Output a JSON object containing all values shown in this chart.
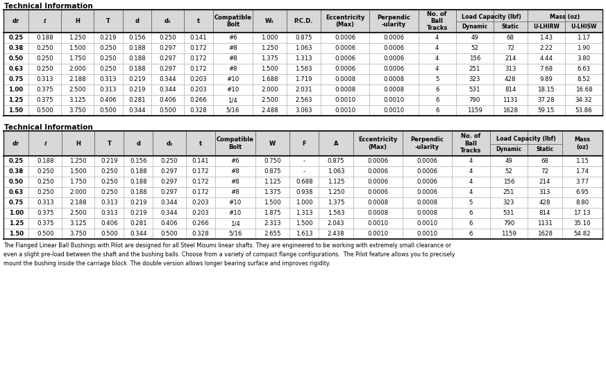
{
  "title1": "Technical Information",
  "title2": "Technical Information",
  "table1_data": [
    [
      "0.25",
      "0.188",
      "1.250",
      "0.219",
      "0.156",
      "0.250",
      "0.141",
      "#6",
      "1.000",
      "0.875",
      "0.0006",
      "0.0006",
      "4",
      "49",
      "68",
      "1.43",
      "1.17"
    ],
    [
      "0.38",
      "0.250",
      "1.500",
      "0.250",
      "0.188",
      "0.297",
      "0.172",
      "#8",
      "1.250",
      "1.063",
      "0.0006",
      "0.0006",
      "4",
      "52",
      "72",
      "2.22",
      "1.90"
    ],
    [
      "0.50",
      "0.250",
      "1.750",
      "0.250",
      "0.188",
      "0.297",
      "0.172",
      "#8",
      "1.375",
      "1.313",
      "0.0006",
      "0.0006",
      "4",
      "156",
      "214",
      "4.44",
      "3.80"
    ],
    [
      "0.63",
      "0.250",
      "2.000",
      "0.250",
      "0.188",
      "0.297",
      "0.172",
      "#8",
      "1.500",
      "1.563",
      "0.0006",
      "0.0006",
      "4",
      "251",
      "313",
      "7.68",
      "6.63"
    ],
    [
      "0.75",
      "0.313",
      "2.188",
      "0.313",
      "0.219",
      "0.344",
      "0.203",
      "#10",
      "1.688",
      "1.719",
      "0.0008",
      "0.0008",
      "5",
      "323",
      "428",
      "9.89",
      "8.52"
    ],
    [
      "1.00",
      "0.375",
      "2.500",
      "0.313",
      "0.219",
      "0.344",
      "0.203",
      "#10",
      "2.000",
      "2.031",
      "0.0008",
      "0.0008",
      "6",
      "531",
      "814",
      "18.15",
      "16.68"
    ],
    [
      "1.25",
      "0.375",
      "3.125",
      "0.406",
      "0.281",
      "0.406",
      "0.266",
      "1/4",
      "2.500",
      "2.563",
      "0.0010",
      "0.0010",
      "6",
      "790",
      "1131",
      "37.28",
      "34.32"
    ],
    [
      "1.50",
      "0.500",
      "3.750",
      "0.500",
      "0.344",
      "0.500",
      "0.328",
      "5/16",
      "2.488",
      "3.063",
      "0.0010",
      "0.0010",
      "6",
      "1159",
      "1628",
      "59.15",
      "53.86"
    ]
  ],
  "table2_data": [
    [
      "0.25",
      "0.188",
      "1.250",
      "0.219",
      "0.156",
      "0.250",
      "0.141",
      "#6",
      "0.750",
      "-",
      "0.875",
      "0.0006",
      "0.0006",
      "4",
      "49",
      "68",
      "1.15"
    ],
    [
      "0.38",
      "0.250",
      "1.500",
      "0.250",
      "0.188",
      "0.297",
      "0.172",
      "#8",
      "0.875",
      "-",
      "1.063",
      "0.0006",
      "0.0006",
      "4",
      "52",
      "72",
      "1.74"
    ],
    [
      "0.50",
      "0.250",
      "1.750",
      "0.250",
      "0.188",
      "0.297",
      "0.172",
      "#8",
      "1.125",
      "0.688",
      "1.125",
      "0.0006",
      "0.0006",
      "4",
      "156",
      "214",
      "3.77"
    ],
    [
      "0.63",
      "0.250",
      "2.000",
      "0.250",
      "0.188",
      "0.297",
      "0.172",
      "#8",
      "1.375",
      "0.938",
      "1.250",
      "0.0006",
      "0.0006",
      "4",
      "251",
      "313",
      "6.95"
    ],
    [
      "0.75",
      "0.313",
      "2.188",
      "0.313",
      "0.219",
      "0.344",
      "0.203",
      "#10",
      "1.500",
      "1.000",
      "1.375",
      "0.0008",
      "0.0008",
      "5",
      "323",
      "428",
      "8.80"
    ],
    [
      "1.00",
      "0.375",
      "2.500",
      "0.313",
      "0.219",
      "0.344",
      "0.203",
      "#10",
      "1.875",
      "1.313",
      "1.563",
      "0.0008",
      "0.0008",
      "6",
      "531",
      "814",
      "17.13"
    ],
    [
      "1.25",
      "0.375",
      "3.125",
      "0.406",
      "0.281",
      "0.406",
      "0.266",
      "1/4",
      "2.313",
      "1.500",
      "2.043",
      "0.0010",
      "0.0010",
      "6",
      "790",
      "1131",
      "35.10"
    ],
    [
      "1.50",
      "0.500",
      "3.750",
      "0.500",
      "0.344",
      "0.500",
      "0.328",
      "5/16",
      "2.655",
      "1.613",
      "2.438",
      "0.0010",
      "0.0010",
      "6",
      "1159",
      "1628",
      "54.82"
    ]
  ],
  "footer_text": "The Flanged Linear Ball Bushings with Pilot are designed for all Steel Misumi linear shafts. They are engineered to be working with extremely small clearance or\neven a slight pre-load between the shaft and the bushing balls. Choose from a variety of compact flange configurations.  The Pilot feature allows you to precisely\nmount the bushing inside the carriage block. The double version allows longer bearing surface and improves rigidity.",
  "bg_color": "#ffffff",
  "header_bg": "#d8d8d8",
  "border_color": "#555555",
  "cell_border": "#aaaaaa",
  "text_color": "#000000",
  "t1_col_weights": [
    1.0,
    1.3,
    1.3,
    1.15,
    1.15,
    1.3,
    1.15,
    1.6,
    1.35,
    1.35,
    1.95,
    1.95,
    1.5,
    1.5,
    1.35,
    1.5,
    1.5
  ],
  "t2_col_weights": [
    1.0,
    1.3,
    1.3,
    1.15,
    1.15,
    1.3,
    1.15,
    1.6,
    1.35,
    1.15,
    1.35,
    1.95,
    1.95,
    1.5,
    1.5,
    1.35,
    1.6
  ]
}
